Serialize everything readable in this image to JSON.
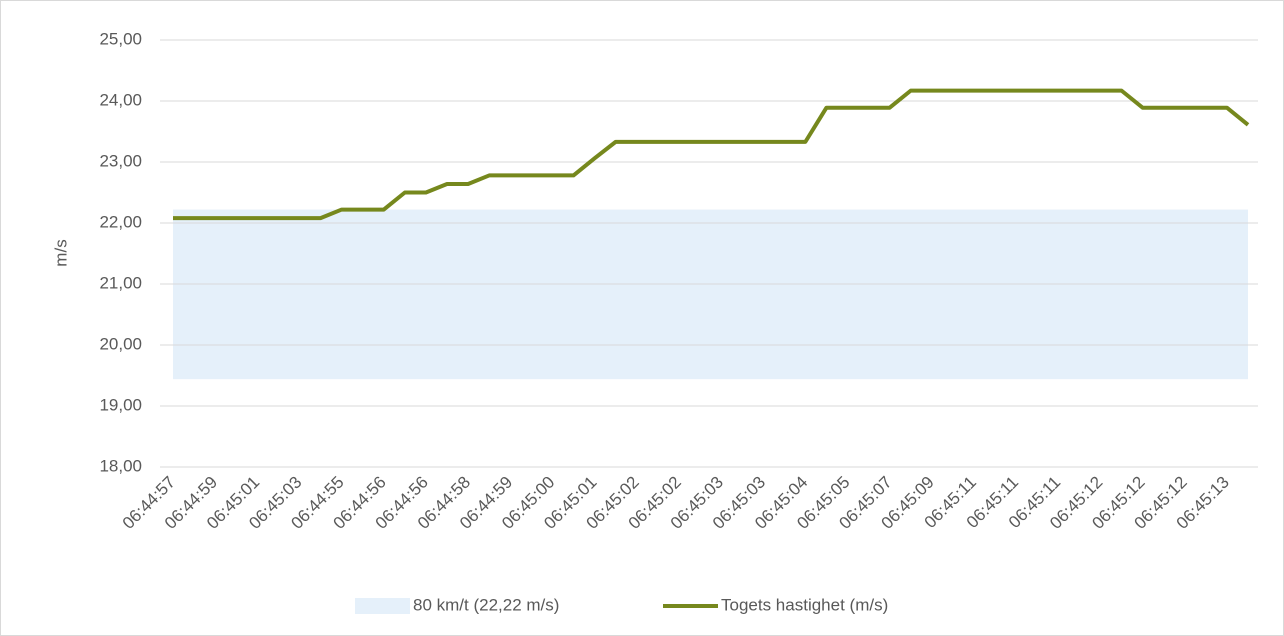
{
  "chart_data": {
    "type": "line",
    "y_label": "m/s",
    "categories": [
      "06:44:57",
      null,
      "06:44:59",
      null,
      "06:45:01",
      null,
      "06:45:03",
      null,
      "06:44:55",
      null,
      "06:44:56",
      null,
      "06:44:56",
      null,
      "06:44:58",
      null,
      "06:44:59",
      null,
      "06:45:00",
      null,
      "06:45:01",
      null,
      "06:45:02",
      null,
      "06:45:02",
      null,
      "06:45:03",
      null,
      "06:45:03",
      null,
      "06:45:04",
      null,
      "06:45:05",
      null,
      "06:45:07",
      null,
      "06:45:09",
      null,
      "06:45:11",
      null,
      "06:45:11",
      null,
      "06:45:11",
      null,
      "06:45:12",
      null,
      "06:45:12",
      null,
      "06:45:12",
      null,
      "06:45:13",
      null
    ],
    "series": [
      {
        "name": "Togets hastighet (m/s)",
        "color": "#76881d",
        "values": [
          22.08,
          22.08,
          22.08,
          22.08,
          22.08,
          22.08,
          22.08,
          22.08,
          22.22,
          22.22,
          22.22,
          22.5,
          22.5,
          22.64,
          22.64,
          22.78,
          22.78,
          22.78,
          22.78,
          22.78,
          23.06,
          23.33,
          23.33,
          23.33,
          23.33,
          23.33,
          23.33,
          23.33,
          23.33,
          23.33,
          23.33,
          23.89,
          23.89,
          23.89,
          23.89,
          24.17,
          24.17,
          24.17,
          24.17,
          24.17,
          24.17,
          24.17,
          24.17,
          24.17,
          24.17,
          24.17,
          23.89,
          23.89,
          23.89,
          23.89,
          23.89,
          23.61
        ]
      }
    ],
    "band": {
      "name": "80 km/t (22,22 m/s)",
      "color": "#e5f0fa",
      "low": 19.44,
      "high": 22.22
    },
    "ylim": [
      18,
      25
    ],
    "yticks": [
      {
        "value": 18,
        "label": "18,00"
      },
      {
        "value": 19,
        "label": "19,00"
      },
      {
        "value": 20,
        "label": "20,00"
      },
      {
        "value": 21,
        "label": "21,00"
      },
      {
        "value": 22,
        "label": "22,00"
      },
      {
        "value": 23,
        "label": "23,00"
      },
      {
        "value": 24,
        "label": "24,00"
      },
      {
        "value": 25,
        "label": "25,00"
      }
    ],
    "grid": true,
    "legend": "bottom"
  }
}
